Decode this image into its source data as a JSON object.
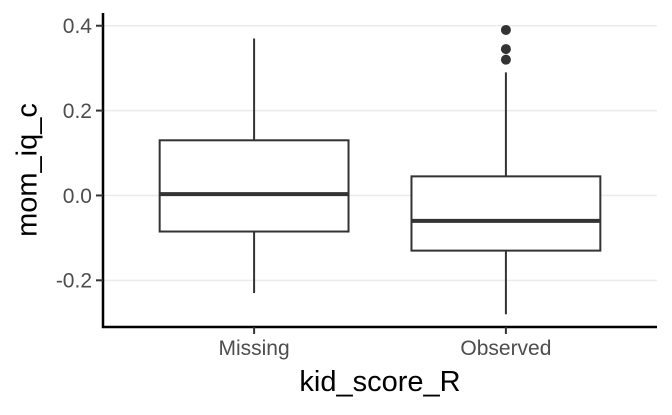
{
  "chart_data": {
    "type": "boxplot",
    "title": "",
    "xlabel": "kid_score_R",
    "ylabel": "mom_iq_c",
    "categories": [
      "Missing",
      "Observed"
    ],
    "ylim": [
      -0.31,
      0.43
    ],
    "yticks": [
      {
        "value": -0.2,
        "label": "-0.2"
      },
      {
        "value": 0.0,
        "label": "0.0"
      },
      {
        "value": 0.2,
        "label": "0.2"
      },
      {
        "value": 0.4,
        "label": "0.4"
      }
    ],
    "grid": "horizontal-major-only",
    "legend": "none",
    "series": [
      {
        "name": "Missing",
        "whisker_low": -0.23,
        "q1": -0.085,
        "median": 0.003,
        "q3": 0.13,
        "whisker_high": 0.37,
        "outliers": []
      },
      {
        "name": "Observed",
        "whisker_low": -0.28,
        "q1": -0.13,
        "median": -0.06,
        "q3": 0.045,
        "whisker_high": 0.29,
        "outliers": [
          0.39,
          0.345,
          0.32
        ]
      }
    ]
  },
  "style": {
    "background": "#ffffff",
    "box_stroke": "#333333",
    "box_fill": "#ffffff",
    "median_color": "#333333",
    "whisker_color": "#333333",
    "outlier_color": "#333333",
    "axis_line_color": "#000000",
    "tick_color": "#333333",
    "tick_label_color": "#4d4d4d",
    "axis_title_color": "#000000",
    "gridline_color": "#ebebeb"
  }
}
